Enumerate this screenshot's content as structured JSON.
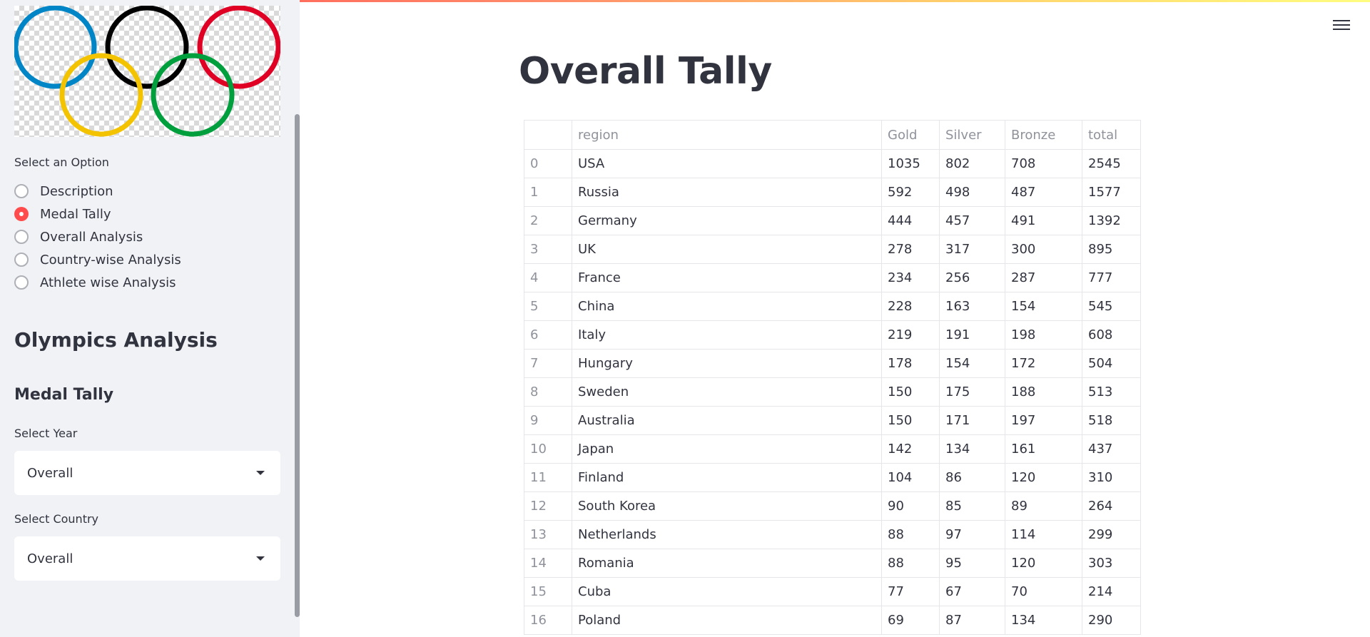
{
  "sidebar": {
    "logo_icon": "olympic-rings-icon",
    "option_label": "Select an Option",
    "options": [
      {
        "label": "Description",
        "selected": false
      },
      {
        "label": "Medal Tally",
        "selected": true
      },
      {
        "label": "Overall Analysis",
        "selected": false
      },
      {
        "label": "Country-wise Analysis",
        "selected": false
      },
      {
        "label": "Athlete wise Analysis",
        "selected": false
      }
    ],
    "app_title": "Olympics Analysis",
    "section_title": "Medal Tally",
    "year_label": "Select Year",
    "year_value": "Overall",
    "country_label": "Select Country",
    "country_value": "Overall"
  },
  "main": {
    "title": "Overall Tally",
    "menu_icon": "hamburger-menu-icon",
    "table": {
      "columns": [
        "",
        "region",
        "Gold",
        "Silver",
        "Bronze",
        "total"
      ],
      "rows": [
        [
          "0",
          "USA",
          "1035",
          "802",
          "708",
          "2545"
        ],
        [
          "1",
          "Russia",
          "592",
          "498",
          "487",
          "1577"
        ],
        [
          "2",
          "Germany",
          "444",
          "457",
          "491",
          "1392"
        ],
        [
          "3",
          "UK",
          "278",
          "317",
          "300",
          "895"
        ],
        [
          "4",
          "France",
          "234",
          "256",
          "287",
          "777"
        ],
        [
          "5",
          "China",
          "228",
          "163",
          "154",
          "545"
        ],
        [
          "6",
          "Italy",
          "219",
          "191",
          "198",
          "608"
        ],
        [
          "7",
          "Hungary",
          "178",
          "154",
          "172",
          "504"
        ],
        [
          "8",
          "Sweden",
          "150",
          "175",
          "188",
          "513"
        ],
        [
          "9",
          "Australia",
          "150",
          "171",
          "197",
          "518"
        ],
        [
          "10",
          "Japan",
          "142",
          "134",
          "161",
          "437"
        ],
        [
          "11",
          "Finland",
          "104",
          "86",
          "120",
          "310"
        ],
        [
          "12",
          "South Korea",
          "90",
          "85",
          "89",
          "264"
        ],
        [
          "13",
          "Netherlands",
          "88",
          "97",
          "114",
          "299"
        ],
        [
          "14",
          "Romania",
          "88",
          "95",
          "120",
          "303"
        ],
        [
          "15",
          "Cuba",
          "77",
          "67",
          "70",
          "214"
        ],
        [
          "16",
          "Poland",
          "69",
          "87",
          "134",
          "290"
        ]
      ]
    }
  },
  "colors": {
    "accent": "#ff4b4b",
    "sidebar_bg": "#f0f2f6",
    "ring_blue": "#0085c7",
    "ring_yellow": "#f4c300",
    "ring_black": "#000000",
    "ring_green": "#009f3d",
    "ring_red": "#df0024"
  }
}
